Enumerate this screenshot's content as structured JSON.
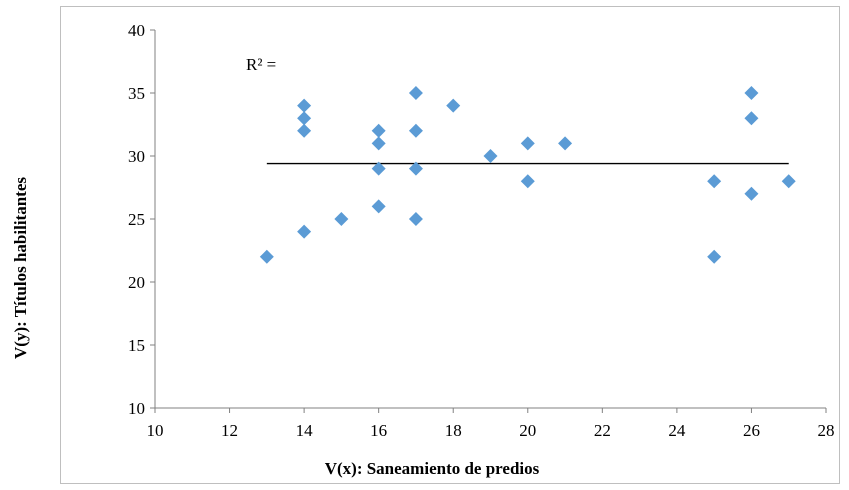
{
  "chart_data": {
    "type": "scatter",
    "title": "",
    "xlabel": "V(x): Saneamiento de predios",
    "ylabel": "V(y): Títulos habilitantes",
    "xlim": [
      10,
      28
    ],
    "ylim": [
      10,
      40
    ],
    "xticks": [
      "10",
      "12",
      "14",
      "16",
      "18",
      "20",
      "22",
      "24",
      "26",
      "28"
    ],
    "yticks": [
      "10",
      "15",
      "20",
      "25",
      "30",
      "35",
      "40"
    ],
    "grid": false,
    "legend": "none",
    "marker_color": "#5b9bd5",
    "annotation": "R² =",
    "trendline": {
      "x": [
        13,
        27
      ],
      "y": [
        29.4,
        29.4
      ],
      "color": "#000000"
    },
    "points": [
      {
        "x": 13,
        "y": 22
      },
      {
        "x": 14,
        "y": 34
      },
      {
        "x": 14,
        "y": 33
      },
      {
        "x": 14,
        "y": 32
      },
      {
        "x": 14,
        "y": 24
      },
      {
        "x": 15,
        "y": 25
      },
      {
        "x": 16,
        "y": 32
      },
      {
        "x": 16,
        "y": 31
      },
      {
        "x": 16,
        "y": 29
      },
      {
        "x": 16,
        "y": 26
      },
      {
        "x": 17,
        "y": 35
      },
      {
        "x": 17,
        "y": 32
      },
      {
        "x": 17,
        "y": 29
      },
      {
        "x": 17,
        "y": 25
      },
      {
        "x": 18,
        "y": 34
      },
      {
        "x": 19,
        "y": 30
      },
      {
        "x": 20,
        "y": 31
      },
      {
        "x": 20,
        "y": 28
      },
      {
        "x": 21,
        "y": 31
      },
      {
        "x": 25,
        "y": 28
      },
      {
        "x": 25,
        "y": 22
      },
      {
        "x": 26,
        "y": 35
      },
      {
        "x": 26,
        "y": 33
      },
      {
        "x": 26,
        "y": 27
      },
      {
        "x": 27,
        "y": 28
      }
    ]
  }
}
